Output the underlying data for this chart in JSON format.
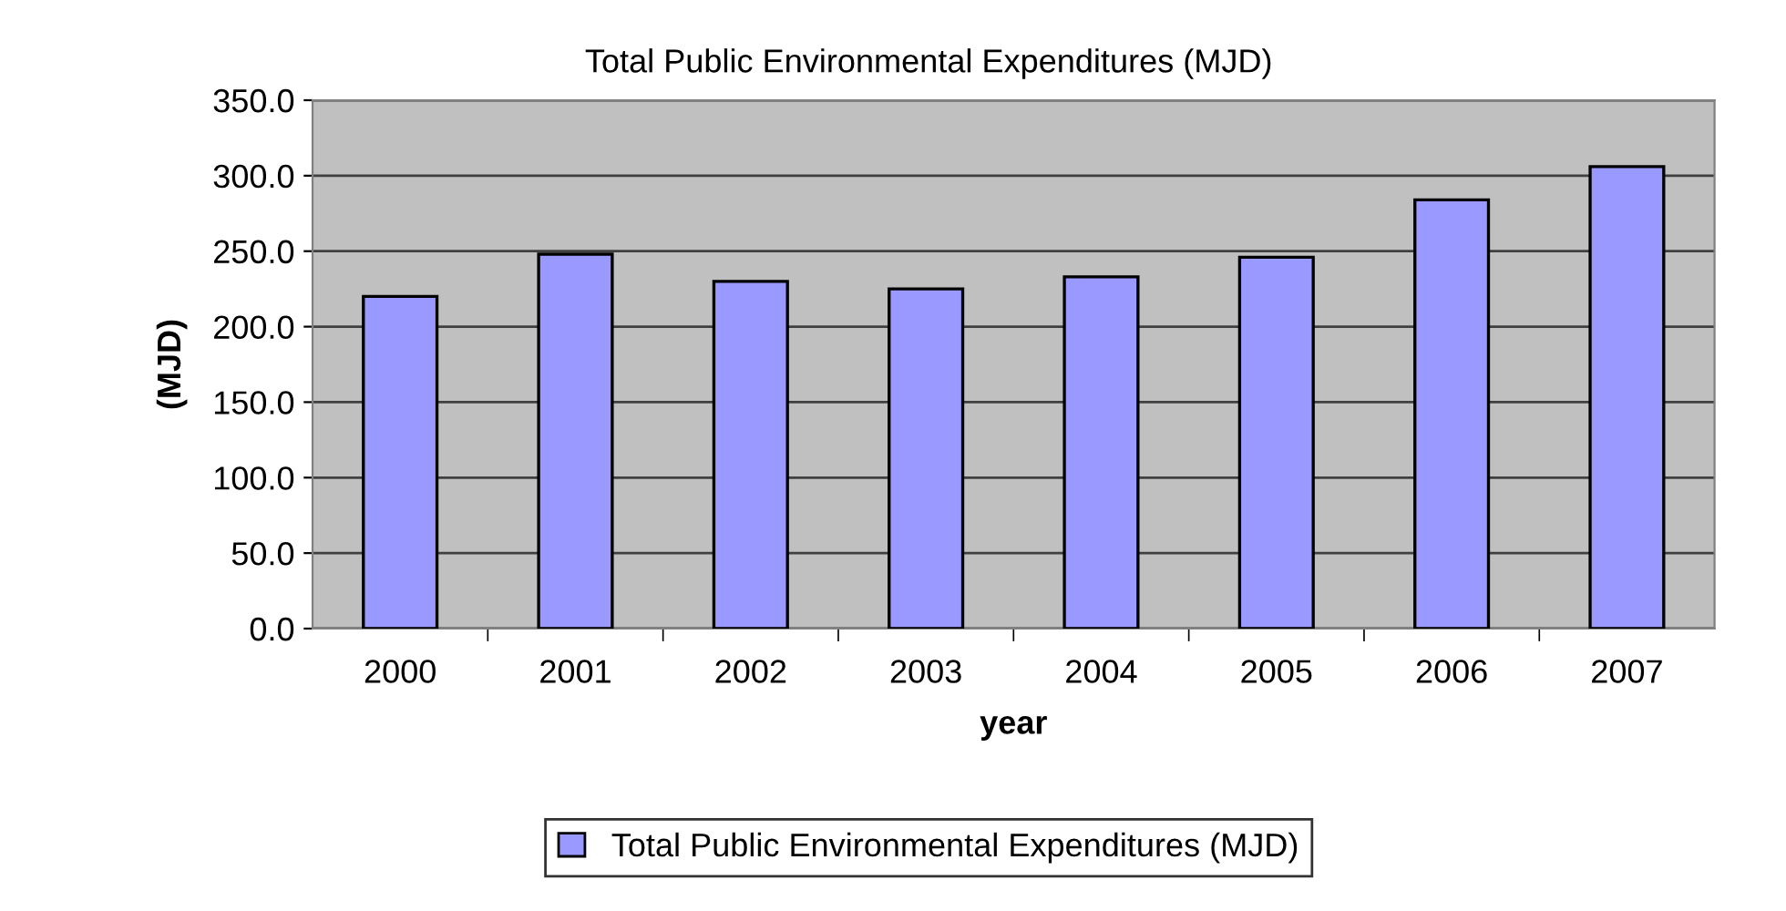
{
  "chart_data": {
    "type": "bar",
    "title": "Total Public Environmental Expenditures (MJD)",
    "xlabel": "year",
    "ylabel": "(MJD)",
    "categories": [
      "2000",
      "2001",
      "2002",
      "2003",
      "2004",
      "2005",
      "2006",
      "2007"
    ],
    "series": [
      {
        "name": "Total Public Environmental Expenditures (MJD)",
        "color": "#9999ff",
        "values": [
          220,
          248,
          230,
          225,
          233,
          246,
          284,
          306
        ]
      }
    ],
    "ylim": [
      0,
      350
    ],
    "yticks": [
      {
        "value": 0,
        "label": "0.0"
      },
      {
        "value": 50,
        "label": "50.0"
      },
      {
        "value": 100,
        "label": "100.0"
      },
      {
        "value": 150,
        "label": "150.0"
      },
      {
        "value": 200,
        "label": "200.0"
      },
      {
        "value": 250,
        "label": "250.0"
      },
      {
        "value": 300,
        "label": "300.0"
      },
      {
        "value": 350,
        "label": "350.0"
      }
    ],
    "grid": "y",
    "legend": "bottom"
  }
}
